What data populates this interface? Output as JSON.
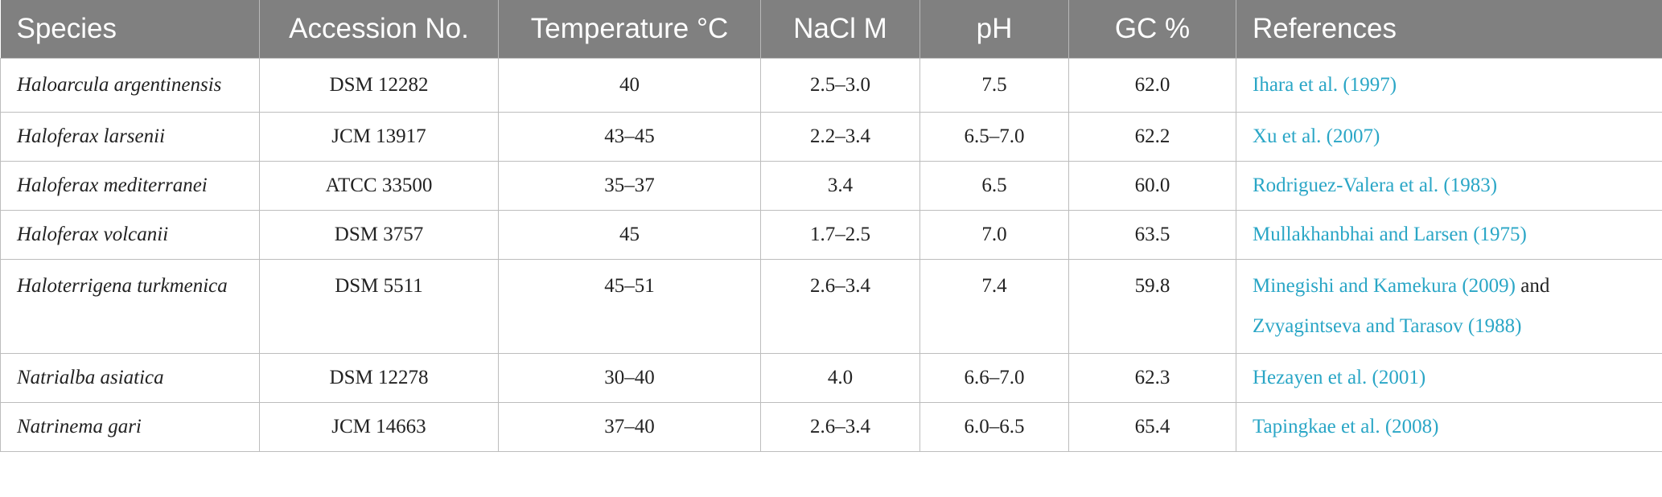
{
  "columns": [
    "Species",
    "Accession No.",
    "Temperature °C",
    "NaCl M",
    "pH",
    "GC %",
    "References"
  ],
  "rows": [
    {
      "species": "Haloarcula argentinensis",
      "accession": "DSM 12282",
      "temperature": "40",
      "nacl": "2.5–3.0",
      "ph": "7.5",
      "gc": "62.0",
      "ref1": "Ihara et al. (1997)",
      "ref_and": "",
      "ref2": ""
    },
    {
      "species": "Haloferax larsenii",
      "accession": "JCM 13917",
      "temperature": "43–45",
      "nacl": "2.2–3.4",
      "ph": "6.5–7.0",
      "gc": "62.2",
      "ref1": "Xu et al. (2007)",
      "ref_and": "",
      "ref2": ""
    },
    {
      "species": "Haloferax mediterranei",
      "accession": "ATCC 33500",
      "temperature": "35–37",
      "nacl": "3.4",
      "ph": "6.5",
      "gc": "60.0",
      "ref1": "Rodriguez-Valera et al. (1983)",
      "ref_and": "",
      "ref2": ""
    },
    {
      "species": "Haloferax volcanii",
      "accession": "DSM 3757",
      "temperature": "45",
      "nacl": "1.7–2.5",
      "ph": "7.0",
      "gc": "63.5",
      "ref1": "Mullakhanbhai and Larsen (1975)",
      "ref_and": "",
      "ref2": ""
    },
    {
      "species": "Haloterrigena turkmenica",
      "accession": "DSM 5511",
      "temperature": "45–51",
      "nacl": "2.6–3.4",
      "ph": "7.4",
      "gc": "59.8",
      "ref1": "Minegishi and Kamekura (2009)",
      "ref_and": " and ",
      "ref2": "Zvyagintseva and Tarasov (1988)"
    },
    {
      "species": "Natrialba asiatica",
      "accession": "DSM 12278",
      "temperature": "30–40",
      "nacl": "4.0",
      "ph": "6.6–7.0",
      "gc": "62.3",
      "ref1": "Hezayen et al. (2001)",
      "ref_and": "",
      "ref2": ""
    },
    {
      "species": "Natrinema gari",
      "accession": "JCM 14663",
      "temperature": "37–40",
      "nacl": "2.6–3.4",
      "ph": "6.0–6.5",
      "gc": "65.4",
      "ref1": "Tapingkae et al. (2008)",
      "ref_and": "",
      "ref2": ""
    }
  ],
  "colors": {
    "header_bg": "#808080",
    "header_text": "#ffffff",
    "link": "#2aa6c6",
    "border": "#bdbdbd"
  }
}
